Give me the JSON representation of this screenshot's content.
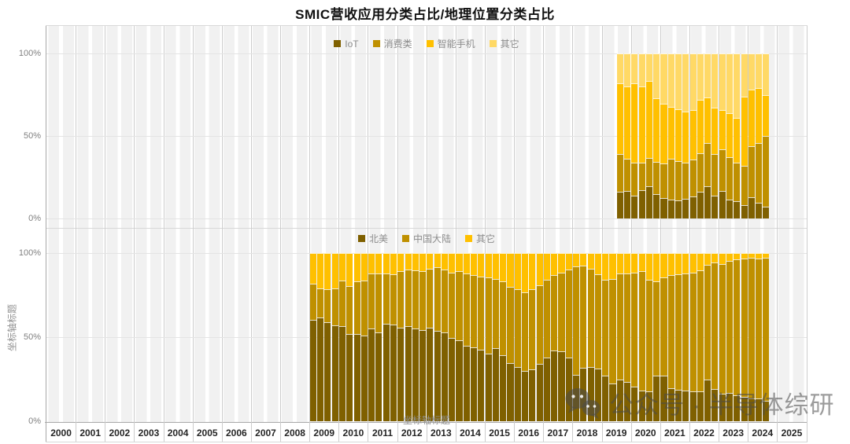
{
  "title": "SMIC营收应用分类占比/地理位置分类占比",
  "watermark": {
    "text": "公众号 · 半导体综研",
    "icon": "wechat-icon"
  },
  "axes": {
    "y_tick_labels": [
      "100%",
      "50%",
      "0%"
    ],
    "y_axis_title": "坐标轴标题",
    "x_axis_title": "坐标轴标题",
    "years": [
      "2000",
      "2001",
      "2002",
      "2003",
      "2004",
      "2005",
      "2006",
      "2007",
      "2008",
      "2009",
      "2010",
      "2011",
      "2012",
      "2013",
      "2014",
      "2015",
      "2016",
      "2017",
      "2018",
      "2019",
      "2020",
      "2021",
      "2022",
      "2023",
      "2024",
      "2025"
    ]
  },
  "chart_data": [
    {
      "type": "bar",
      "stacked": true,
      "name": "SMIC营收应用分类占比",
      "unit": "percent of revenue",
      "ylim": [
        0,
        100
      ],
      "y_ticks": [
        0,
        50,
        100
      ],
      "grid": true,
      "legend_position": "top-center",
      "x": [
        "2019Q3",
        "2019Q4",
        "2020Q1",
        "2020Q2",
        "2020Q3",
        "2020Q4",
        "2021Q1",
        "2021Q2",
        "2021Q3",
        "2021Q4",
        "2022Q1",
        "2022Q2",
        "2022Q3",
        "2022Q4",
        "2023Q1",
        "2023Q2",
        "2023Q3",
        "2023Q4",
        "2024Q1",
        "2024Q2",
        "2024Q3"
      ],
      "series": [
        {
          "name": "IoT",
          "color": "#7F6000",
          "values": [
            16,
            16.5,
            14,
            17,
            19.5,
            15,
            12.5,
            11.5,
            11,
            12,
            13.3,
            16,
            19.5,
            14,
            16.5,
            11.3,
            10.5,
            8,
            13,
            9.5,
            7
          ]
        },
        {
          "name": "消费类",
          "color": "#BF9000",
          "values": [
            23,
            19.5,
            20,
            17,
            17,
            19.5,
            21,
            24.5,
            24,
            22,
            22.5,
            23.5,
            26,
            25,
            25.5,
            26,
            23.5,
            24,
            31,
            36,
            43
          ]
        },
        {
          "name": "智能手机",
          "color": "#FFC000",
          "values": [
            43,
            44,
            48,
            46,
            47,
            38.5,
            36,
            31.5,
            31,
            31,
            30,
            32.5,
            28,
            28,
            23.5,
            26.5,
            27,
            42,
            34,
            33.5,
            25
          ]
        },
        {
          "name": "其它",
          "color": "#FFD966",
          "values": [
            18,
            20,
            18,
            20,
            16.5,
            27,
            30.5,
            32.5,
            34,
            35,
            34.2,
            28,
            26.5,
            33,
            34.5,
            36.2,
            39,
            26,
            22,
            21,
            25
          ]
        }
      ]
    },
    {
      "type": "bar",
      "stacked": true,
      "name": "SMIC营收地理位置分类占比",
      "unit": "percent of revenue",
      "ylim": [
        0,
        100
      ],
      "y_ticks": [
        0,
        50,
        100
      ],
      "grid": true,
      "legend_position": "top-center",
      "x": [
        "2009Q1",
        "2009Q2",
        "2009Q3",
        "2009Q4",
        "2010Q1",
        "2010Q2",
        "2010Q3",
        "2010Q4",
        "2011Q1",
        "2011Q2",
        "2011Q3",
        "2011Q4",
        "2012Q1",
        "2012Q2",
        "2012Q3",
        "2012Q4",
        "2013Q1",
        "2013Q2",
        "2013Q3",
        "2013Q4",
        "2014Q1",
        "2014Q2",
        "2014Q3",
        "2014Q4",
        "2015Q1",
        "2015Q2",
        "2015Q3",
        "2015Q4",
        "2016Q1",
        "2016Q2",
        "2016Q3",
        "2016Q4",
        "2017Q1",
        "2017Q2",
        "2017Q3",
        "2017Q4",
        "2018Q1",
        "2018Q2",
        "2018Q3",
        "2018Q4",
        "2019Q1",
        "2019Q2",
        "2019Q3",
        "2019Q4",
        "2020Q1",
        "2020Q2",
        "2020Q3",
        "2020Q4",
        "2021Q1",
        "2021Q2",
        "2021Q3",
        "2021Q4",
        "2022Q1",
        "2022Q2",
        "2022Q3",
        "2022Q4",
        "2023Q1",
        "2023Q2",
        "2023Q3",
        "2023Q4",
        "2024Q1",
        "2024Q2",
        "2024Q3"
      ],
      "series": [
        {
          "name": "北美",
          "color": "#7F6000",
          "values": [
            60.5,
            61.5,
            59,
            57,
            56.5,
            52,
            52,
            51,
            55.3,
            52.6,
            58,
            57.3,
            55.8,
            56.5,
            55,
            54.2,
            55.8,
            53.7,
            52.6,
            49.5,
            48,
            45,
            44,
            42.5,
            40.2,
            43.3,
            39.4,
            34.7,
            32.4,
            30.1,
            30.8,
            34,
            37.9,
            42.1,
            41.4,
            37.9,
            27.7,
            31.9,
            32.4,
            31.3,
            26.9,
            22.3,
            24.6,
            23.5,
            20.7,
            18.4,
            17.9,
            27.3,
            26.9,
            19.5,
            18.7,
            18.4,
            17.9,
            17.6,
            24.6,
            19.2,
            16.5,
            16.7,
            15.3,
            14.5,
            13.7,
            13.7,
            12.1
          ]
        },
        {
          "name": "中国大陆",
          "color": "#BF9000",
          "values": [
            21.3,
            17.5,
            19.3,
            22.1,
            27.3,
            28.5,
            31,
            32.8,
            32.4,
            35.4,
            30,
            30.1,
            33.5,
            33.5,
            34.6,
            35.1,
            35,
            37.9,
            37.4,
            39,
            41.3,
            42.7,
            42.9,
            43.6,
            45.2,
            41.3,
            43.6,
            45.2,
            45.9,
            46.4,
            47.5,
            47,
            46.1,
            44.8,
            47.1,
            52.1,
            64.4,
            60.8,
            58.1,
            55.9,
            57.2,
            62.3,
            63.4,
            64.5,
            67.6,
            70.9,
            66.4,
            56,
            58.8,
            67.4,
            68.5,
            69.3,
            70.6,
            72,
            68.5,
            75,
            77.1,
            78.5,
            81,
            82.2,
            83.3,
            83,
            84.9
          ]
        },
        {
          "name": "其它",
          "color": "#FFC000",
          "values": [
            18.2,
            21,
            21.7,
            20.9,
            16.2,
            19.5,
            17,
            16.2,
            12.3,
            12,
            12,
            12.6,
            10.7,
            10,
            10.4,
            10.7,
            9.2,
            8.4,
            10,
            11.5,
            10.7,
            12.3,
            13.1,
            13.9,
            14.6,
            15.4,
            17,
            20.1,
            21.7,
            23.5,
            21.7,
            19,
            16,
            13.1,
            11.5,
            10,
            7.9,
            7.3,
            9.5,
            12.8,
            15.9,
            15.4,
            12,
            12,
            11.7,
            10.7,
            15.7,
            16.7,
            14.3,
            13.1,
            12.8,
            12.3,
            11.5,
            10.4,
            6.9,
            5.8,
            6.4,
            4.8,
            3.7,
            3.3,
            3,
            3.3,
            3
          ]
        }
      ]
    }
  ]
}
